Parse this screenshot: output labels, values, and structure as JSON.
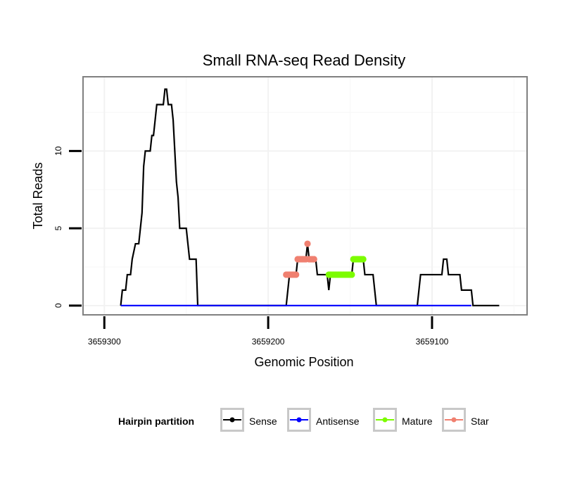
{
  "chart_data": {
    "type": "line",
    "title": "Small RNA-seq Read Density",
    "xlabel": "Genomic Position",
    "ylabel": "Total Reads",
    "xlim": [
      3659313,
      3659042
    ],
    "ylim": [
      -0.6,
      14.8
    ],
    "x_reversed": true,
    "grid": true,
    "x_ticks": [
      3659300,
      3659200,
      3659100
    ],
    "x_tick_labels": [
      "3659300",
      "3659200",
      "3659100"
    ],
    "y_ticks": [
      0,
      5,
      10
    ],
    "y_tick_labels": [
      "0",
      "5",
      "10"
    ],
    "legend": {
      "title": "Hairpin partition",
      "position": "bottom",
      "entries": [
        "Sense",
        "Antisense",
        "Mature",
        "Star"
      ]
    },
    "series": [
      {
        "name": "Sense",
        "color": "#000000",
        "style": "line",
        "points": [
          [
            3659290,
            0
          ],
          [
            3659289,
            1
          ],
          [
            3659287,
            1
          ],
          [
            3659286,
            2
          ],
          [
            3659284,
            2
          ],
          [
            3659283,
            3
          ],
          [
            3659281,
            4
          ],
          [
            3659279,
            4
          ],
          [
            3659278,
            5
          ],
          [
            3659277,
            6
          ],
          [
            3659276,
            9
          ],
          [
            3659275,
            10
          ],
          [
            3659272,
            10
          ],
          [
            3659271,
            11
          ],
          [
            3659270,
            11
          ],
          [
            3659269,
            12
          ],
          [
            3659268,
            13
          ],
          [
            3659264,
            13
          ],
          [
            3659263,
            14
          ],
          [
            3659262,
            14
          ],
          [
            3659261,
            13
          ],
          [
            3659259,
            13
          ],
          [
            3659258,
            12
          ],
          [
            3659257,
            10
          ],
          [
            3659256,
            8
          ],
          [
            3659255,
            7
          ],
          [
            3659254,
            5
          ],
          [
            3659250,
            5
          ],
          [
            3659249,
            4
          ],
          [
            3659248,
            3
          ],
          [
            3659244,
            3
          ],
          [
            3659243,
            0
          ],
          [
            3659189,
            0
          ],
          [
            3659187,
            2
          ],
          [
            3659183,
            2
          ],
          [
            3659182,
            3
          ],
          [
            3659177,
            3
          ],
          [
            3659176,
            4
          ],
          [
            3659175,
            3
          ],
          [
            3659171,
            3
          ],
          [
            3659170,
            2
          ],
          [
            3659164,
            2
          ],
          [
            3659163,
            1
          ],
          [
            3659162,
            2
          ],
          [
            3659157,
            2
          ],
          [
            3659149,
            2
          ],
          [
            3659148,
            3
          ],
          [
            3659142,
            3
          ],
          [
            3659141,
            2
          ],
          [
            3659136,
            2
          ],
          [
            3659135,
            1
          ],
          [
            3659134,
            0
          ],
          [
            3659109,
            0
          ],
          [
            3659107,
            2
          ],
          [
            3659094,
            2
          ],
          [
            3659093,
            3
          ],
          [
            3659091,
            3
          ],
          [
            3659090,
            2
          ],
          [
            3659083,
            2
          ],
          [
            3659082,
            1
          ],
          [
            3659076,
            1
          ],
          [
            3659075,
            0
          ],
          [
            3659059,
            0
          ]
        ]
      },
      {
        "name": "Antisense",
        "color": "#0000ff",
        "style": "line",
        "points": [
          [
            3659290,
            0
          ],
          [
            3659076,
            0
          ]
        ]
      },
      {
        "name": "Mature",
        "color": "#7cfc00",
        "style": "points",
        "points": [
          [
            3659163,
            2
          ],
          [
            3659162,
            2
          ],
          [
            3659161,
            2
          ],
          [
            3659160,
            2
          ],
          [
            3659159,
            2
          ],
          [
            3659158,
            2
          ],
          [
            3659157,
            2
          ],
          [
            3659156,
            2
          ],
          [
            3659155,
            2
          ],
          [
            3659154,
            2
          ],
          [
            3659153,
            2
          ],
          [
            3659152,
            2
          ],
          [
            3659151,
            2
          ],
          [
            3659150,
            2
          ],
          [
            3659149,
            2
          ],
          [
            3659148,
            3
          ],
          [
            3659147,
            3
          ],
          [
            3659146,
            3
          ],
          [
            3659145,
            3
          ],
          [
            3659144,
            3
          ],
          [
            3659143,
            3
          ],
          [
            3659142,
            3
          ]
        ]
      },
      {
        "name": "Star",
        "color": "#f08070",
        "style": "points",
        "points": [
          [
            3659189,
            2
          ],
          [
            3659188,
            2
          ],
          [
            3659187,
            2
          ],
          [
            3659186,
            2
          ],
          [
            3659185,
            2
          ],
          [
            3659184,
            2
          ],
          [
            3659183,
            2
          ],
          [
            3659182,
            3
          ],
          [
            3659181,
            3
          ],
          [
            3659180,
            3
          ],
          [
            3659179,
            3
          ],
          [
            3659178,
            3
          ],
          [
            3659177,
            3
          ],
          [
            3659176,
            4
          ],
          [
            3659175,
            3
          ],
          [
            3659174,
            3
          ],
          [
            3659173,
            3
          ],
          [
            3659172,
            3
          ]
        ]
      }
    ]
  }
}
